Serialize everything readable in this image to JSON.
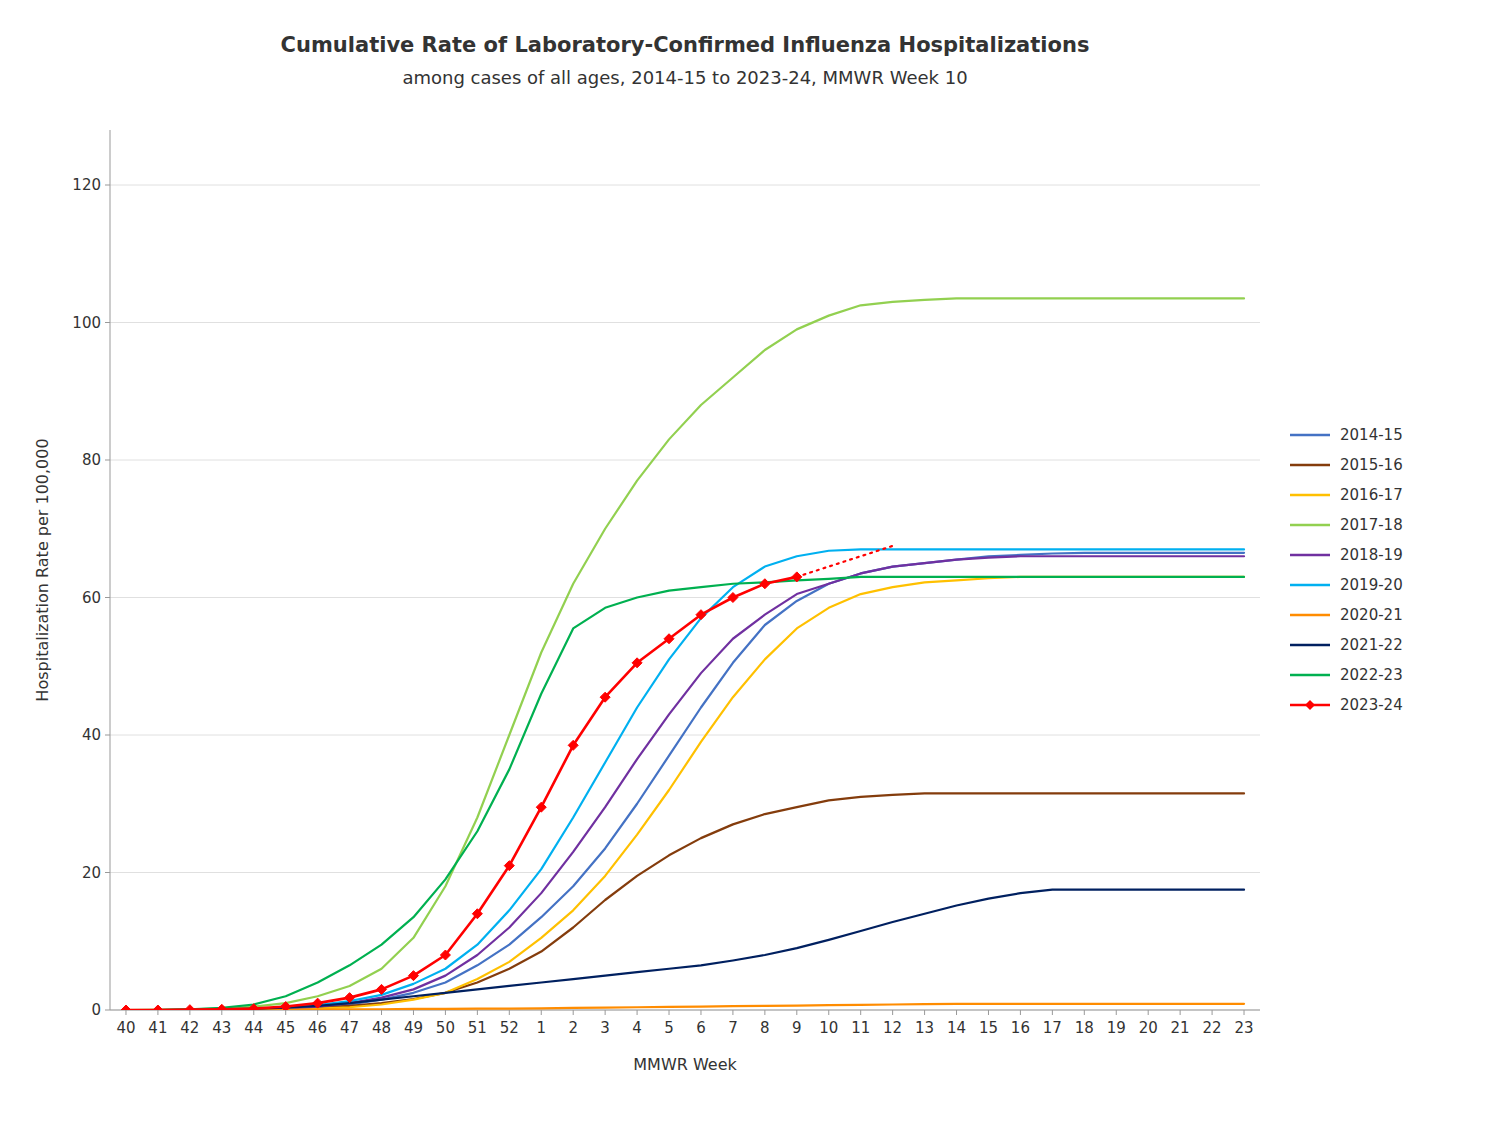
{
  "chart_data": {
    "type": "line",
    "title": "Cumulative Rate of Laboratory-Confirmed Influenza Hospitalizations",
    "subtitle": "among cases of all ages, 2014-15 to 2023-24, MMWR Week 10",
    "x_label": "MMWR Week",
    "y_label": "Hospitalization Rate per 100,000",
    "categories": [
      "40",
      "41",
      "42",
      "43",
      "44",
      "45",
      "46",
      "47",
      "48",
      "49",
      "50",
      "51",
      "52",
      "1",
      "2",
      "3",
      "4",
      "5",
      "6",
      "7",
      "8",
      "9",
      "10",
      "11",
      "12",
      "13",
      "14",
      "15",
      "16",
      "17",
      "18",
      "19",
      "20",
      "21",
      "22",
      "23"
    ],
    "ylim": [
      0,
      128
    ],
    "yticks": [
      0,
      20,
      40,
      60,
      80,
      100,
      120
    ],
    "grid": true,
    "legend": "right",
    "series": [
      {
        "name": "2014-15",
        "color": "#4472C4",
        "line_style": "solid",
        "values": [
          0.0,
          0.0,
          0.0,
          0.05,
          0.1,
          0.2,
          0.4,
          0.8,
          1.5,
          2.5,
          4.0,
          6.5,
          9.5,
          13.5,
          18.0,
          23.5,
          30.0,
          37.0,
          44.0,
          50.5,
          56.0,
          59.5,
          62.0,
          63.5,
          64.5,
          65.0,
          65.5,
          66.0,
          66.2,
          66.4,
          66.5,
          66.5,
          66.5,
          66.5,
          66.5,
          66.5
        ]
      },
      {
        "name": "2015-16",
        "color": "#843C0C",
        "line_style": "solid",
        "values": [
          0.0,
          0.0,
          0.0,
          0.05,
          0.1,
          0.2,
          0.35,
          0.6,
          1.0,
          1.6,
          2.5,
          4.0,
          6.0,
          8.5,
          12.0,
          16.0,
          19.5,
          22.5,
          25.0,
          27.0,
          28.5,
          29.5,
          30.5,
          31.0,
          31.3,
          31.5,
          31.5,
          31.5,
          31.5,
          31.5,
          31.5,
          31.5,
          31.5,
          31.5,
          31.5,
          31.5
        ]
      },
      {
        "name": "2016-17",
        "color": "#FFC000",
        "line_style": "solid",
        "values": [
          0.0,
          0.0,
          0.0,
          0.0,
          0.05,
          0.1,
          0.2,
          0.4,
          0.8,
          1.5,
          2.5,
          4.5,
          7.0,
          10.5,
          14.5,
          19.5,
          25.5,
          32.0,
          39.0,
          45.5,
          51.0,
          55.5,
          58.5,
          60.5,
          61.5,
          62.2,
          62.5,
          62.8,
          63.0,
          63.0,
          63.0,
          63.0,
          63.0,
          63.0,
          63.0,
          63.0
        ]
      },
      {
        "name": "2017-18",
        "color": "#92D050",
        "line_style": "solid",
        "values": [
          0.0,
          0.05,
          0.1,
          0.2,
          0.5,
          1.0,
          2.0,
          3.5,
          6.0,
          10.5,
          18.0,
          28.0,
          40.0,
          52.0,
          62.0,
          70.0,
          77.0,
          83.0,
          88.0,
          92.0,
          96.0,
          99.0,
          101.0,
          102.5,
          103.0,
          103.3,
          103.5,
          103.5,
          103.5,
          103.5,
          103.5,
          103.5,
          103.5,
          103.5,
          103.5,
          103.5
        ]
      },
      {
        "name": "2018-19",
        "color": "#7030A0",
        "line_style": "solid",
        "values": [
          0.0,
          0.0,
          0.0,
          0.05,
          0.1,
          0.2,
          0.5,
          1.0,
          1.8,
          3.0,
          5.0,
          8.0,
          12.0,
          17.0,
          23.0,
          29.5,
          36.5,
          43.0,
          49.0,
          54.0,
          57.5,
          60.5,
          62.0,
          63.5,
          64.5,
          65.0,
          65.5,
          65.8,
          66.0,
          66.0,
          66.0,
          66.0,
          66.0,
          66.0,
          66.0,
          66.0
        ]
      },
      {
        "name": "2019-20",
        "color": "#00B0F0",
        "line_style": "solid",
        "values": [
          0.0,
          0.0,
          0.0,
          0.05,
          0.1,
          0.3,
          0.7,
          1.3,
          2.2,
          3.8,
          6.0,
          9.5,
          14.5,
          20.5,
          28.0,
          36.0,
          44.0,
          51.0,
          57.0,
          61.5,
          64.5,
          66.0,
          66.8,
          67.0,
          67.0,
          67.0,
          67.0,
          67.0,
          67.0,
          67.0,
          67.0,
          67.0,
          67.0,
          67.0,
          67.0,
          67.0
        ]
      },
      {
        "name": "2020-21",
        "color": "#FF8C00",
        "line_style": "solid",
        "values": [
          0.0,
          0.0,
          0.0,
          0.0,
          0.0,
          0.05,
          0.05,
          0.1,
          0.1,
          0.15,
          0.15,
          0.2,
          0.2,
          0.25,
          0.3,
          0.35,
          0.4,
          0.45,
          0.5,
          0.55,
          0.6,
          0.65,
          0.7,
          0.75,
          0.8,
          0.85,
          0.9,
          0.9,
          0.9,
          0.9,
          0.9,
          0.9,
          0.9,
          0.9,
          0.9,
          0.9
        ]
      },
      {
        "name": "2021-22",
        "color": "#002060",
        "line_style": "solid",
        "values": [
          0.0,
          0.0,
          0.05,
          0.1,
          0.2,
          0.35,
          0.6,
          1.0,
          1.5,
          2.0,
          2.5,
          3.0,
          3.5,
          4.0,
          4.5,
          5.0,
          5.5,
          6.0,
          6.5,
          7.2,
          8.0,
          9.0,
          10.2,
          11.5,
          12.8,
          14.0,
          15.2,
          16.2,
          17.0,
          17.5,
          17.5,
          17.5,
          17.5,
          17.5,
          17.5,
          17.5
        ]
      },
      {
        "name": "2022-23",
        "color": "#00B050",
        "line_style": "solid",
        "values": [
          0.0,
          0.0,
          0.1,
          0.3,
          0.8,
          2.0,
          4.0,
          6.5,
          9.5,
          13.5,
          19.0,
          26.0,
          35.0,
          46.0,
          55.5,
          58.5,
          60.0,
          61.0,
          61.5,
          62.0,
          62.2,
          62.5,
          62.7,
          63.0,
          63.0,
          63.0,
          63.0,
          63.0,
          63.0,
          63.0,
          63.0,
          63.0,
          63.0,
          63.0,
          63.0,
          63.0
        ]
      },
      {
        "name": "2023-24",
        "color": "#FF0000",
        "line_style": "solid",
        "marker": "diamond",
        "values": [
          0.0,
          0.0,
          0.05,
          0.1,
          0.2,
          0.5,
          1.0,
          1.8,
          3.0,
          5.0,
          8.0,
          14.0,
          21.0,
          29.5,
          38.5,
          45.5,
          50.5,
          54.0,
          57.5,
          60.0,
          62.0,
          63.0,
          null,
          null,
          null,
          null,
          null,
          null,
          null,
          null,
          null,
          null,
          null,
          null,
          null,
          null
        ]
      },
      {
        "name": "2023-24",
        "color": "#FF0000",
        "line_style": "dotted",
        "values": [
          null,
          null,
          null,
          null,
          null,
          null,
          null,
          null,
          null,
          null,
          null,
          null,
          null,
          null,
          null,
          null,
          null,
          null,
          null,
          null,
          null,
          63.0,
          64.5,
          66.0,
          67.5,
          null,
          null,
          null,
          null,
          null,
          null,
          null,
          null,
          null,
          null,
          null
        ]
      }
    ]
  }
}
